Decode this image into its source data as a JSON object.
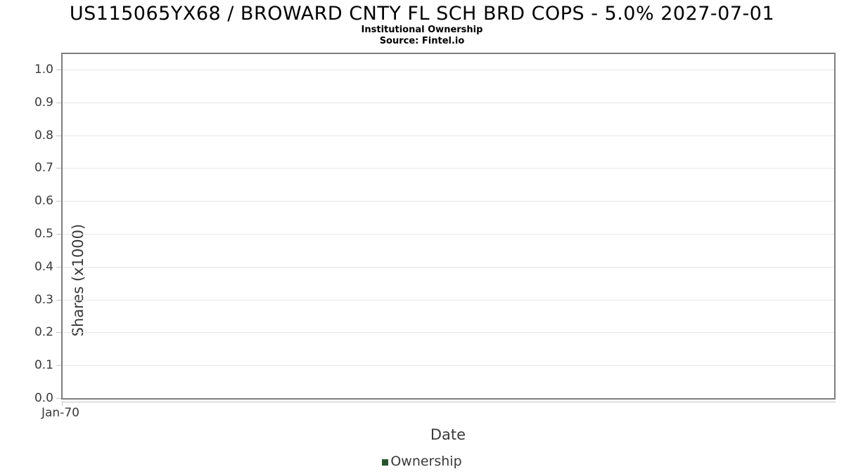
{
  "header": {
    "title": "US115065YX68 / BROWARD CNTY FL SCH BRD COPS - 5.0% 2027-07-01",
    "subtitle": "Institutional Ownership",
    "source": "Source: Fintel.io"
  },
  "chart_data": {
    "type": "line",
    "title": "US115065YX68 / BROWARD CNTY FL SCH BRD COPS - 5.0% 2027-07-01",
    "subtitle": "Institutional Ownership",
    "source": "Source: Fintel.io",
    "xlabel": "Date",
    "ylabel": "Shares (x1000)",
    "ylim": [
      0.0,
      1.055
    ],
    "grid": "horizontal-only",
    "legend_position": "bottom-center",
    "y_ticks": [
      {
        "label": "0.0",
        "value": 0.0
      },
      {
        "label": "0.1",
        "value": 0.1
      },
      {
        "label": "0.2",
        "value": 0.2
      },
      {
        "label": "0.3",
        "value": 0.3
      },
      {
        "label": "0.4",
        "value": 0.4
      },
      {
        "label": "0.5",
        "value": 0.5
      },
      {
        "label": "0.6",
        "value": 0.6
      },
      {
        "label": "0.7",
        "value": 0.7
      },
      {
        "label": "0.8",
        "value": 0.8
      },
      {
        "label": "0.9",
        "value": 0.9
      },
      {
        "label": "1.0",
        "value": 1.0
      }
    ],
    "x_ticks": [
      {
        "label": "Jan-70",
        "position": 0.0
      }
    ],
    "series": [
      {
        "name": "Ownership",
        "color": "#28532f",
        "x": [],
        "y": []
      }
    ]
  },
  "legend": {
    "label": "Ownership",
    "marker_color": "#28532f"
  },
  "colors": {
    "background": "#ffffff",
    "plot_border": "#7e7e7e",
    "gridline": "#e6e6e6",
    "axis_line": "#c4c4c4",
    "tick_text": "#3a3a3a",
    "title_text": "#000000",
    "legend_marker": "#28532f"
  }
}
